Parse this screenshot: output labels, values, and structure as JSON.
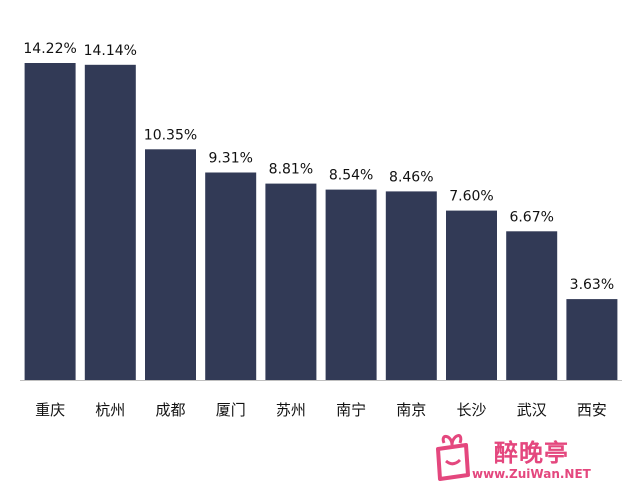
{
  "chart_data": {
    "type": "bar",
    "categories": [
      "重庆",
      "杭州",
      "成都",
      "厦门",
      "苏州",
      "南宁",
      "南京",
      "长沙",
      "武汉",
      "西安"
    ],
    "values": [
      14.22,
      14.14,
      10.35,
      9.31,
      8.81,
      8.54,
      8.46,
      7.6,
      6.67,
      3.63
    ],
    "data_labels": [
      "14.22%",
      "14.14%",
      "10.35%",
      "9.31%",
      "8.81%",
      "8.54%",
      "8.46%",
      "7.60%",
      "6.67%",
      "3.63%"
    ],
    "ylim": [
      0,
      14.22
    ],
    "grid": false,
    "legend": "none",
    "bar_color": "#323a56",
    "axis_color": "#bfbfbf"
  },
  "watermark": {
    "text": "醉晚亭",
    "url": "www.ZuiWan.NET",
    "color": "#e4477e"
  }
}
